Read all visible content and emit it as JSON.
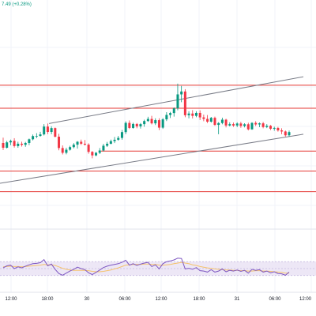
{
  "header": {
    "change_text": "7.49 (+0.28%)"
  },
  "colors": {
    "up": "#089981",
    "down": "#f23645",
    "level": "#e53935",
    "channel": "#787b86",
    "rsi": "#7e57c2",
    "rsi_ma": "#f5c26b",
    "rsi_band": "#ede7f6",
    "grid": "#f0f3fa",
    "axis_text": "#131722"
  },
  "chart_data": [
    {
      "type": "candlestick",
      "title": "",
      "x_tick_labels": [
        "12:00",
        "18:00",
        "30",
        "06:00",
        "12:00",
        "18:00",
        "31",
        "06:00",
        "12:00"
      ],
      "y_range_norm": [
        0,
        1
      ],
      "horizontal_levels_norm": [
        0.64,
        0.49,
        0.21,
        0.08,
        -0.055
      ],
      "channel_lines_norm": [
        {
          "from": [
            0.155,
            0.39
          ],
          "to": [
            0.96,
            0.695
          ]
        },
        {
          "from": [
            0.155,
            0.025
          ],
          "to": [
            0.96,
            0.32
          ]
        }
      ],
      "candles": [
        [
          0.263,
          0.298,
          0.217,
          0.232
        ],
        [
          0.232,
          0.277,
          0.227,
          0.267
        ],
        [
          0.267,
          0.285,
          0.249,
          0.277
        ],
        [
          0.277,
          0.294,
          0.233,
          0.243
        ],
        [
          0.243,
          0.271,
          0.232,
          0.258
        ],
        [
          0.258,
          0.271,
          0.24,
          0.251
        ],
        [
          0.251,
          0.27,
          0.238,
          0.263
        ],
        [
          0.263,
          0.292,
          0.249,
          0.287
        ],
        [
          0.287,
          0.318,
          0.28,
          0.308
        ],
        [
          0.308,
          0.327,
          0.294,
          0.309
        ],
        [
          0.309,
          0.336,
          0.304,
          0.319
        ],
        [
          0.319,
          0.386,
          0.312,
          0.37
        ],
        [
          0.37,
          0.39,
          0.321,
          0.335
        ],
        [
          0.335,
          0.372,
          0.32,
          0.36
        ],
        [
          0.36,
          0.364,
          0.299,
          0.304
        ],
        [
          0.304,
          0.323,
          0.215,
          0.23
        ],
        [
          0.23,
          0.247,
          0.188,
          0.199
        ],
        [
          0.199,
          0.232,
          0.189,
          0.219
        ],
        [
          0.219,
          0.245,
          0.213,
          0.236
        ],
        [
          0.236,
          0.262,
          0.228,
          0.252
        ],
        [
          0.252,
          0.275,
          0.226,
          0.271
        ],
        [
          0.271,
          0.285,
          0.25,
          0.258
        ],
        [
          0.258,
          0.282,
          0.246,
          0.252
        ],
        [
          0.252,
          0.261,
          0.193,
          0.205
        ],
        [
          0.205,
          0.21,
          0.163,
          0.182
        ],
        [
          0.182,
          0.204,
          0.176,
          0.199
        ],
        [
          0.199,
          0.23,
          0.191,
          0.214
        ],
        [
          0.214,
          0.257,
          0.208,
          0.245
        ],
        [
          0.245,
          0.27,
          0.237,
          0.258
        ],
        [
          0.258,
          0.285,
          0.254,
          0.275
        ],
        [
          0.275,
          0.302,
          0.262,
          0.284
        ],
        [
          0.284,
          0.309,
          0.278,
          0.296
        ],
        [
          0.296,
          0.348,
          0.284,
          0.334
        ],
        [
          0.334,
          0.404,
          0.321,
          0.394
        ],
        [
          0.394,
          0.41,
          0.354,
          0.361
        ],
        [
          0.361,
          0.395,
          0.356,
          0.387
        ],
        [
          0.387,
          0.393,
          0.359,
          0.371
        ],
        [
          0.371,
          0.393,
          0.357,
          0.386
        ],
        [
          0.386,
          0.415,
          0.369,
          0.406
        ],
        [
          0.406,
          0.434,
          0.401,
          0.42
        ],
        [
          0.42,
          0.44,
          0.384,
          0.391
        ],
        [
          0.391,
          0.424,
          0.38,
          0.412
        ],
        [
          0.412,
          0.424,
          0.347,
          0.363
        ],
        [
          0.363,
          0.426,
          0.355,
          0.417
        ],
        [
          0.417,
          0.464,
          0.406,
          0.446
        ],
        [
          0.446,
          0.466,
          0.426,
          0.458
        ],
        [
          0.458,
          0.495,
          0.435,
          0.489
        ],
        [
          0.489,
          0.65,
          0.476,
          0.58
        ],
        [
          0.58,
          0.635,
          0.529,
          0.599
        ],
        [
          0.599,
          0.614,
          0.431,
          0.444
        ],
        [
          0.444,
          0.47,
          0.424,
          0.455
        ],
        [
          0.455,
          0.477,
          0.423,
          0.44
        ],
        [
          0.44,
          0.47,
          0.431,
          0.459
        ],
        [
          0.459,
          0.476,
          0.413,
          0.43
        ],
        [
          0.43,
          0.448,
          0.405,
          0.42
        ],
        [
          0.42,
          0.445,
          0.393,
          0.402
        ],
        [
          0.402,
          0.433,
          0.396,
          0.427
        ],
        [
          0.427,
          0.435,
          0.375,
          0.381
        ],
        [
          0.381,
          0.399,
          0.32,
          0.393
        ],
        [
          0.393,
          0.428,
          0.385,
          0.415
        ],
        [
          0.415,
          0.421,
          0.365,
          0.377
        ],
        [
          0.377,
          0.398,
          0.371,
          0.386
        ],
        [
          0.386,
          0.396,
          0.368,
          0.377
        ],
        [
          0.377,
          0.398,
          0.366,
          0.39
        ],
        [
          0.39,
          0.401,
          0.362,
          0.374
        ],
        [
          0.374,
          0.392,
          0.365,
          0.385
        ],
        [
          0.385,
          0.395,
          0.345,
          0.352
        ],
        [
          0.352,
          0.398,
          0.349,
          0.394
        ],
        [
          0.394,
          0.405,
          0.374,
          0.384
        ],
        [
          0.384,
          0.397,
          0.366,
          0.391
        ],
        [
          0.391,
          0.4,
          0.359,
          0.367
        ],
        [
          0.367,
          0.386,
          0.36,
          0.375
        ],
        [
          0.375,
          0.38,
          0.347,
          0.356
        ],
        [
          0.356,
          0.369,
          0.343,
          0.361
        ],
        [
          0.361,
          0.368,
          0.337,
          0.345
        ],
        [
          0.345,
          0.359,
          0.32,
          0.338
        ],
        [
          0.338,
          0.344,
          0.305,
          0.313
        ],
        [
          0.313,
          0.344,
          0.305,
          0.334
        ]
      ]
    },
    {
      "type": "line",
      "title": "",
      "ylim": [
        0,
        100
      ],
      "bands": [
        70,
        30
      ],
      "series": [
        {
          "values": [
            52,
            58,
            60,
            50,
            55,
            52,
            57,
            61,
            64,
            65,
            67,
            76,
            58,
            63,
            48,
            36,
            31,
            37,
            43,
            48,
            54,
            50,
            47,
            38,
            33,
            39,
            46,
            53,
            57,
            60,
            62,
            64,
            68,
            74,
            60,
            64,
            59,
            63,
            66,
            68,
            56,
            61,
            49,
            64,
            70,
            72,
            75,
            80,
            79,
            49,
            51,
            48,
            53,
            44,
            43,
            40,
            47,
            40,
            43,
            49,
            41,
            45,
            43,
            46,
            42,
            45,
            37,
            48,
            45,
            47,
            40,
            43,
            38,
            41,
            36,
            35,
            31,
            40
          ]
        },
        {
          "values": [
            55,
            56,
            57,
            56,
            56,
            55,
            56,
            57,
            58,
            59,
            60,
            62,
            61,
            61,
            59,
            55,
            51,
            48,
            46,
            45,
            45,
            45,
            45,
            44,
            42,
            41,
            41,
            42,
            44,
            46,
            49,
            52,
            56,
            60,
            61,
            62,
            62,
            62,
            63,
            63,
            62,
            62,
            60,
            60,
            61,
            62,
            64,
            66,
            68,
            66,
            64,
            61,
            59,
            56,
            54,
            52,
            51,
            49,
            48,
            47,
            46,
            46,
            45,
            45,
            44,
            44,
            43,
            43,
            44,
            44,
            43,
            43,
            42,
            41,
            40,
            39,
            37,
            37
          ]
        }
      ]
    }
  ]
}
